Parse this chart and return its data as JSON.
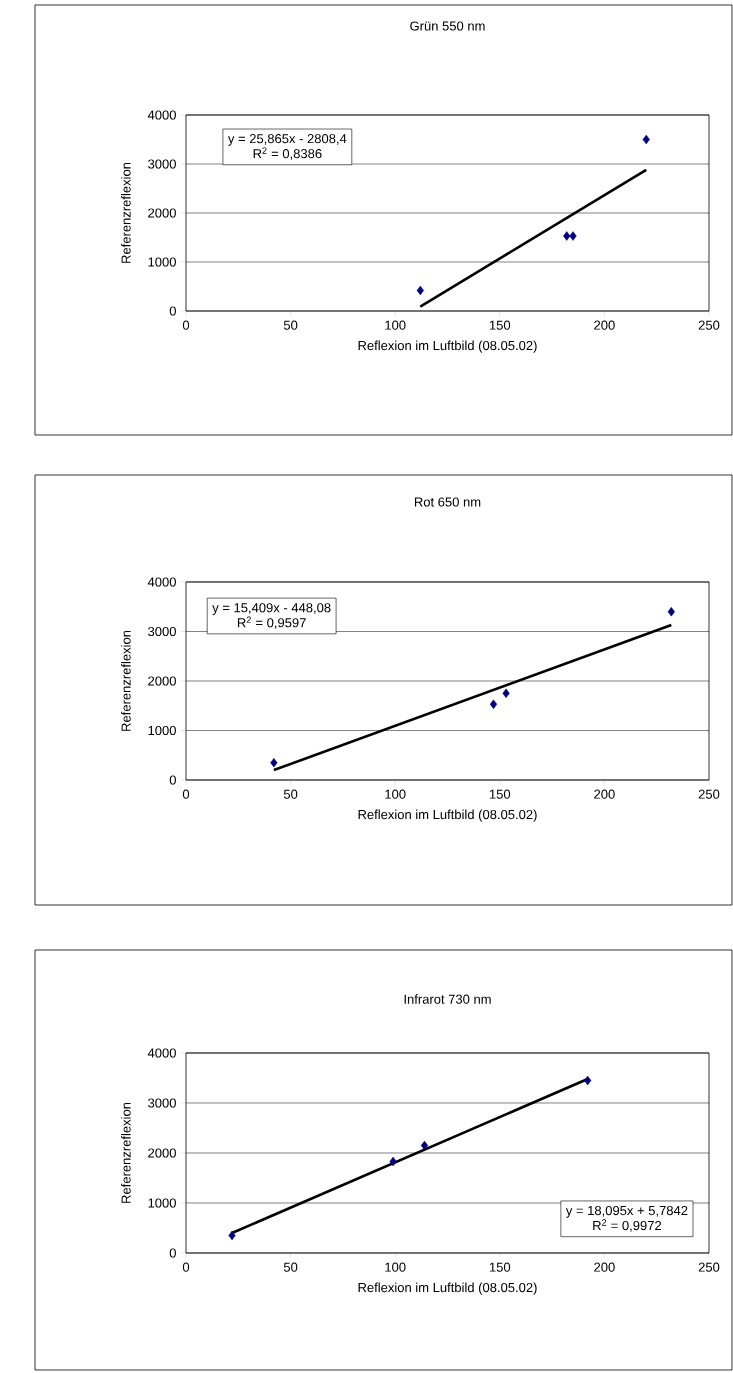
{
  "chart_data": [
    {
      "type": "scatter",
      "title": "Grün 550 nm",
      "xlabel": "Reflexion im Luftbild (08.05.02)",
      "ylabel": "Referenzreflexion",
      "xlim": [
        0,
        250
      ],
      "ylim": [
        0,
        4000
      ],
      "xticks": [
        0,
        50,
        100,
        150,
        200,
        250
      ],
      "yticks": [
        0,
        1000,
        2000,
        3000,
        4000
      ],
      "grid": "y",
      "marker": "diamond",
      "series": [
        {
          "color": "#000080",
          "x": [
            112,
            182,
            185,
            220
          ],
          "values": [
            420,
            1530,
            1530,
            3500
          ]
        },
        {
          "type": "line",
          "marker": "none",
          "color": "#000000",
          "x": [
            112,
            220
          ],
          "values": [
            90,
            2880
          ]
        }
      ],
      "annotations": [
        "y = 25,865x - 2808,4",
        "R$^{2}$ = 0,8386"
      ]
    },
    {
      "type": "scatter",
      "title": "Rot 650 nm",
      "xlabel": "Reflexion im Luftbild (08.05.02)",
      "ylabel": "Referenzreflexion",
      "xlim": [
        0,
        250
      ],
      "ylim": [
        0,
        4000
      ],
      "xticks": [
        0,
        50,
        100,
        150,
        200,
        250
      ],
      "yticks": [
        0,
        1000,
        2000,
        3000,
        4000
      ],
      "grid": "y",
      "marker": "diamond",
      "series": [
        {
          "color": "#000080",
          "x": [
            42,
            147,
            153,
            232
          ],
          "values": [
            350,
            1530,
            1750,
            3400
          ]
        },
        {
          "type": "line",
          "marker": "none",
          "color": "#000000",
          "x": [
            42,
            232
          ],
          "values": [
            200,
            3130
          ]
        }
      ],
      "annotations": [
        "y = 15,409x - 448,08",
        "R$^{2}$ = 0,9597"
      ]
    },
    {
      "type": "scatter",
      "title": "Infrarot 730 nm",
      "xlabel": "Reflexion im Luftbild (08.05.02)",
      "ylabel": "Referenzreflexion",
      "xlim": [
        0,
        250
      ],
      "ylim": [
        0,
        4000
      ],
      "xticks": [
        0,
        50,
        100,
        150,
        200,
        250
      ],
      "yticks": [
        0,
        1000,
        2000,
        3000,
        4000
      ],
      "grid": "y",
      "marker": "diamond",
      "series": [
        {
          "color": "#000080",
          "x": [
            22,
            99,
            114,
            192
          ],
          "values": [
            350,
            1830,
            2150,
            3450
          ]
        },
        {
          "type": "line",
          "marker": "none",
          "color": "#000000",
          "x": [
            22,
            192
          ],
          "values": [
            400,
            3480
          ]
        }
      ],
      "annotations": [
        "y = 18,095x + 5,7842",
        "R$^{2}$ = 0,9972"
      ]
    }
  ]
}
